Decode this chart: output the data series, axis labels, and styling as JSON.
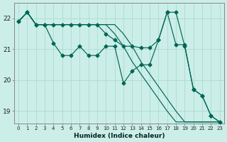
{
  "xlabel": "Humidex (Indice chaleur)",
  "background_color": "#cceee8",
  "grid_color": "#aaddcc",
  "line_color": "#006655",
  "xlim": [
    -0.5,
    23.5
  ],
  "ylim": [
    18.6,
    22.5
  ],
  "yticks": [
    19,
    20,
    21,
    22
  ],
  "xticks": [
    0,
    1,
    2,
    3,
    4,
    5,
    6,
    7,
    8,
    9,
    10,
    11,
    12,
    13,
    14,
    15,
    16,
    17,
    18,
    19,
    20,
    21,
    22,
    23
  ],
  "line1_y": [
    21.9,
    22.2,
    21.8,
    21.8,
    21.2,
    20.8,
    20.8,
    21.1,
    20.8,
    20.8,
    21.1,
    21.1,
    19.9,
    20.3,
    20.5,
    20.5,
    21.3,
    22.2,
    22.2,
    21.1,
    19.7,
    19.5,
    18.85,
    18.65
  ],
  "line2_y": [
    21.9,
    22.2,
    21.8,
    21.8,
    21.8,
    21.8,
    21.8,
    21.8,
    21.8,
    21.8,
    21.5,
    21.3,
    21.1,
    21.1,
    21.05,
    21.05,
    21.3,
    22.2,
    21.15,
    21.15,
    19.7,
    19.5,
    18.85,
    18.65
  ],
  "line3_y": [
    21.9,
    22.2,
    21.8,
    21.8,
    21.8,
    21.8,
    21.8,
    21.8,
    21.8,
    21.8,
    21.8,
    21.5,
    21.1,
    20.6,
    20.2,
    19.8,
    19.4,
    19.0,
    18.65,
    18.65,
    18.65,
    18.65,
    18.65,
    18.65
  ],
  "line4_y": [
    21.9,
    22.2,
    21.8,
    21.8,
    21.8,
    21.8,
    21.8,
    21.8,
    21.8,
    21.8,
    21.8,
    21.8,
    21.5,
    21.1,
    20.6,
    20.2,
    19.8,
    19.4,
    19.0,
    18.65,
    18.65,
    18.65,
    18.65,
    18.65
  ]
}
